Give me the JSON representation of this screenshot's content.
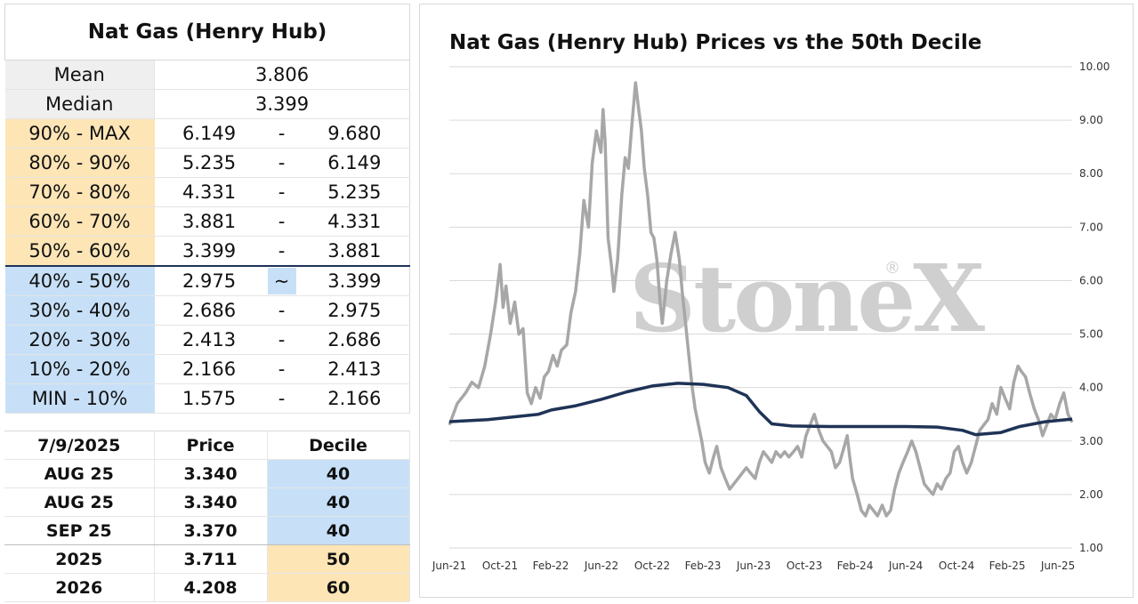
{
  "decile_table": {
    "title": "Nat Gas (Henry Hub)",
    "stats": [
      {
        "label": "Mean",
        "value": "3.806"
      },
      {
        "label": "Median",
        "value": "3.399"
      }
    ],
    "rows": [
      {
        "label": "90% - MAX",
        "low": "6.149",
        "sep": "-",
        "high": "9.680",
        "group": "hi"
      },
      {
        "label": "80% - 90%",
        "low": "5.235",
        "sep": "-",
        "high": "6.149",
        "group": "hi"
      },
      {
        "label": "70% - 80%",
        "low": "4.331",
        "sep": "-",
        "high": "5.235",
        "group": "hi"
      },
      {
        "label": "60% - 70%",
        "low": "3.881",
        "sep": "-",
        "high": "4.331",
        "group": "hi"
      },
      {
        "label": "50% - 60%",
        "low": "3.399",
        "sep": "-",
        "high": "3.881",
        "group": "hi"
      },
      {
        "label": "40% - 50%",
        "low": "2.975",
        "sep": "~",
        "high": "3.399",
        "group": "lo",
        "current": true
      },
      {
        "label": "30% - 40%",
        "low": "2.686",
        "sep": "-",
        "high": "2.975",
        "group": "lo"
      },
      {
        "label": "20% - 30%",
        "low": "2.413",
        "sep": "-",
        "high": "2.686",
        "group": "lo"
      },
      {
        "label": "10% - 20%",
        "low": "2.166",
        "sep": "-",
        "high": "2.413",
        "group": "lo"
      },
      {
        "label": "MIN - 10%",
        "low": "1.575",
        "sep": "-",
        "high": "2.166",
        "group": "lo"
      }
    ]
  },
  "contract_table": {
    "headers": [
      "7/9/2025",
      "Price",
      "Decile"
    ],
    "rows": [
      {
        "contract": "AUG 25",
        "price": "3.340",
        "decile": "40",
        "group": "lo"
      },
      {
        "contract": "AUG 25",
        "price": "3.340",
        "decile": "40",
        "group": "lo"
      },
      {
        "contract": "SEP 25",
        "price": "3.370",
        "decile": "40",
        "group": "lo"
      },
      {
        "contract": "2025",
        "price": "3.711",
        "decile": "50",
        "group": "hi"
      },
      {
        "contract": "2026",
        "price": "4.208",
        "decile": "60",
        "group": "hi"
      }
    ]
  },
  "watermark": {
    "text": "StoneX",
    "reg": "®"
  },
  "colors": {
    "price_line": "#a7a7a7",
    "decile_line": "#1e3356",
    "grid": "#d9d9d9",
    "hi_fill": "#fde5b6",
    "lo_fill": "#c7e0f8",
    "watermark": "#cfcfcf"
  },
  "chart_data": {
    "type": "line",
    "title": "Nat Gas (Henry Hub) Prices vs the 50th Decile",
    "xlabel": "",
    "ylabel": "",
    "x_ticks": [
      "Jun-21",
      "Oct-21",
      "Feb-22",
      "Jun-22",
      "Oct-22",
      "Feb-23",
      "Jun-23",
      "Oct-23",
      "Feb-24",
      "Jun-24",
      "Oct-24",
      "Feb-25",
      "Jun-25"
    ],
    "y_ticks": [
      "1.00",
      "2.00",
      "3.00",
      "4.00",
      "5.00",
      "6.00",
      "7.00",
      "8.00",
      "9.00",
      "10.00"
    ],
    "ylim": [
      1,
      10
    ],
    "y_axis_side": "right",
    "grid": "horizontal",
    "legend": "none",
    "series": [
      {
        "style": "price",
        "points": [
          [
            "2021-06-01",
            3.3
          ],
          [
            "2021-06-20",
            3.7
          ],
          [
            "2021-07-10",
            3.9
          ],
          [
            "2021-07-25",
            4.1
          ],
          [
            "2021-08-10",
            4.0
          ],
          [
            "2021-08-25",
            4.4
          ],
          [
            "2021-09-08",
            5.0
          ],
          [
            "2021-09-20",
            5.6
          ],
          [
            "2021-10-01",
            6.3
          ],
          [
            "2021-10-08",
            5.5
          ],
          [
            "2021-10-15",
            5.9
          ],
          [
            "2021-10-25",
            5.2
          ],
          [
            "2021-11-05",
            5.6
          ],
          [
            "2021-11-15",
            5.0
          ],
          [
            "2021-11-25",
            5.1
          ],
          [
            "2021-12-05",
            3.9
          ],
          [
            "2021-12-15",
            3.7
          ],
          [
            "2021-12-25",
            4.0
          ],
          [
            "2022-01-05",
            3.8
          ],
          [
            "2022-01-15",
            4.2
          ],
          [
            "2022-01-25",
            4.3
          ],
          [
            "2022-02-05",
            4.6
          ],
          [
            "2022-02-15",
            4.4
          ],
          [
            "2022-02-25",
            4.7
          ],
          [
            "2022-03-10",
            4.8
          ],
          [
            "2022-03-20",
            5.4
          ],
          [
            "2022-03-31",
            5.8
          ],
          [
            "2022-04-10",
            6.5
          ],
          [
            "2022-04-20",
            7.5
          ],
          [
            "2022-05-01",
            7.0
          ],
          [
            "2022-05-10",
            8.2
          ],
          [
            "2022-05-20",
            8.8
          ],
          [
            "2022-05-31",
            8.4
          ],
          [
            "2022-06-05",
            9.2
          ],
          [
            "2022-06-10",
            8.6
          ],
          [
            "2022-06-17",
            6.8
          ],
          [
            "2022-06-25",
            6.3
          ],
          [
            "2022-07-01",
            5.8
          ],
          [
            "2022-07-10",
            6.4
          ],
          [
            "2022-07-20",
            7.6
          ],
          [
            "2022-07-28",
            8.3
          ],
          [
            "2022-08-05",
            8.1
          ],
          [
            "2022-08-12",
            8.8
          ],
          [
            "2022-08-22",
            9.7
          ],
          [
            "2022-08-28",
            9.3
          ],
          [
            "2022-09-05",
            8.8
          ],
          [
            "2022-09-12",
            8.1
          ],
          [
            "2022-09-20",
            7.6
          ],
          [
            "2022-09-28",
            6.9
          ],
          [
            "2022-10-05",
            6.8
          ],
          [
            "2022-10-12",
            6.4
          ],
          [
            "2022-10-20",
            5.6
          ],
          [
            "2022-10-25",
            5.2
          ],
          [
            "2022-11-05",
            6.0
          ],
          [
            "2022-11-15",
            6.5
          ],
          [
            "2022-11-25",
            6.9
          ],
          [
            "2022-12-05",
            6.4
          ],
          [
            "2022-12-12",
            5.8
          ],
          [
            "2022-12-20",
            5.2
          ],
          [
            "2022-12-28",
            4.6
          ],
          [
            "2023-01-05",
            4.0
          ],
          [
            "2023-01-12",
            3.6
          ],
          [
            "2023-01-20",
            3.3
          ],
          [
            "2023-01-28",
            3.0
          ],
          [
            "2023-02-05",
            2.6
          ],
          [
            "2023-02-15",
            2.4
          ],
          [
            "2023-02-25",
            2.7
          ],
          [
            "2023-03-05",
            2.9
          ],
          [
            "2023-03-15",
            2.5
          ],
          [
            "2023-03-25",
            2.3
          ],
          [
            "2023-04-05",
            2.1
          ],
          [
            "2023-04-15",
            2.2
          ],
          [
            "2023-04-25",
            2.3
          ],
          [
            "2023-05-05",
            2.4
          ],
          [
            "2023-05-15",
            2.5
          ],
          [
            "2023-05-25",
            2.4
          ],
          [
            "2023-06-05",
            2.3
          ],
          [
            "2023-06-15",
            2.6
          ],
          [
            "2023-06-25",
            2.8
          ],
          [
            "2023-07-05",
            2.7
          ],
          [
            "2023-07-15",
            2.6
          ],
          [
            "2023-07-25",
            2.8
          ],
          [
            "2023-08-05",
            2.7
          ],
          [
            "2023-08-15",
            2.8
          ],
          [
            "2023-08-25",
            2.7
          ],
          [
            "2023-09-05",
            2.8
          ],
          [
            "2023-09-15",
            2.9
          ],
          [
            "2023-09-25",
            2.7
          ],
          [
            "2023-10-05",
            3.1
          ],
          [
            "2023-10-15",
            3.3
          ],
          [
            "2023-10-25",
            3.5
          ],
          [
            "2023-11-05",
            3.2
          ],
          [
            "2023-11-15",
            3.0
          ],
          [
            "2023-11-25",
            2.9
          ],
          [
            "2023-12-05",
            2.8
          ],
          [
            "2023-12-15",
            2.5
          ],
          [
            "2023-12-25",
            2.6
          ],
          [
            "2024-01-05",
            2.9
          ],
          [
            "2024-01-12",
            3.1
          ],
          [
            "2024-01-18",
            2.7
          ],
          [
            "2024-01-25",
            2.3
          ],
          [
            "2024-02-05",
            2.0
          ],
          [
            "2024-02-15",
            1.7
          ],
          [
            "2024-02-25",
            1.6
          ],
          [
            "2024-03-05",
            1.8
          ],
          [
            "2024-03-15",
            1.7
          ],
          [
            "2024-03-25",
            1.6
          ],
          [
            "2024-04-05",
            1.8
          ],
          [
            "2024-04-15",
            1.6
          ],
          [
            "2024-04-25",
            1.7
          ],
          [
            "2024-05-05",
            2.1
          ],
          [
            "2024-05-15",
            2.4
          ],
          [
            "2024-05-25",
            2.6
          ],
          [
            "2024-06-05",
            2.8
          ],
          [
            "2024-06-15",
            3.0
          ],
          [
            "2024-06-25",
            2.8
          ],
          [
            "2024-07-05",
            2.5
          ],
          [
            "2024-07-15",
            2.2
          ],
          [
            "2024-07-25",
            2.1
          ],
          [
            "2024-08-05",
            2.0
          ],
          [
            "2024-08-15",
            2.2
          ],
          [
            "2024-08-25",
            2.1
          ],
          [
            "2024-09-05",
            2.3
          ],
          [
            "2024-09-15",
            2.4
          ],
          [
            "2024-09-25",
            2.8
          ],
          [
            "2024-10-05",
            2.9
          ],
          [
            "2024-10-15",
            2.6
          ],
          [
            "2024-10-25",
            2.4
          ],
          [
            "2024-11-05",
            2.6
          ],
          [
            "2024-11-15",
            2.9
          ],
          [
            "2024-11-25",
            3.2
          ],
          [
            "2024-12-05",
            3.3
          ],
          [
            "2024-12-15",
            3.4
          ],
          [
            "2024-12-25",
            3.7
          ],
          [
            "2025-01-05",
            3.5
          ],
          [
            "2025-01-15",
            4.0
          ],
          [
            "2025-01-25",
            3.8
          ],
          [
            "2025-02-05",
            3.6
          ],
          [
            "2025-02-15",
            4.1
          ],
          [
            "2025-02-25",
            4.4
          ],
          [
            "2025-03-05",
            4.3
          ],
          [
            "2025-03-15",
            4.2
          ],
          [
            "2025-03-25",
            3.9
          ],
          [
            "2025-04-05",
            3.6
          ],
          [
            "2025-04-15",
            3.4
          ],
          [
            "2025-04-25",
            3.1
          ],
          [
            "2025-05-05",
            3.3
          ],
          [
            "2025-05-15",
            3.5
          ],
          [
            "2025-05-25",
            3.4
          ],
          [
            "2025-06-05",
            3.7
          ],
          [
            "2025-06-15",
            3.9
          ],
          [
            "2025-06-25",
            3.5
          ],
          [
            "2025-07-05",
            3.35
          ]
        ]
      },
      {
        "style": "decile",
        "points": [
          [
            "2021-06-01",
            3.36
          ],
          [
            "2021-09-01",
            3.4
          ],
          [
            "2021-11-01",
            3.45
          ],
          [
            "2022-01-01",
            3.5
          ],
          [
            "2022-02-01",
            3.58
          ],
          [
            "2022-04-01",
            3.66
          ],
          [
            "2022-06-01",
            3.78
          ],
          [
            "2022-08-01",
            3.92
          ],
          [
            "2022-10-01",
            4.03
          ],
          [
            "2022-12-01",
            4.08
          ],
          [
            "2023-02-01",
            4.06
          ],
          [
            "2023-04-01",
            4.0
          ],
          [
            "2023-05-15",
            3.85
          ],
          [
            "2023-06-15",
            3.55
          ],
          [
            "2023-07-15",
            3.32
          ],
          [
            "2023-09-01",
            3.28
          ],
          [
            "2023-12-01",
            3.27
          ],
          [
            "2024-03-01",
            3.27
          ],
          [
            "2024-06-01",
            3.27
          ],
          [
            "2024-08-15",
            3.26
          ],
          [
            "2024-10-15",
            3.2
          ],
          [
            "2024-11-15",
            3.12
          ],
          [
            "2025-01-15",
            3.16
          ],
          [
            "2025-03-01",
            3.27
          ],
          [
            "2025-05-01",
            3.36
          ],
          [
            "2025-07-05",
            3.41
          ]
        ]
      }
    ]
  }
}
